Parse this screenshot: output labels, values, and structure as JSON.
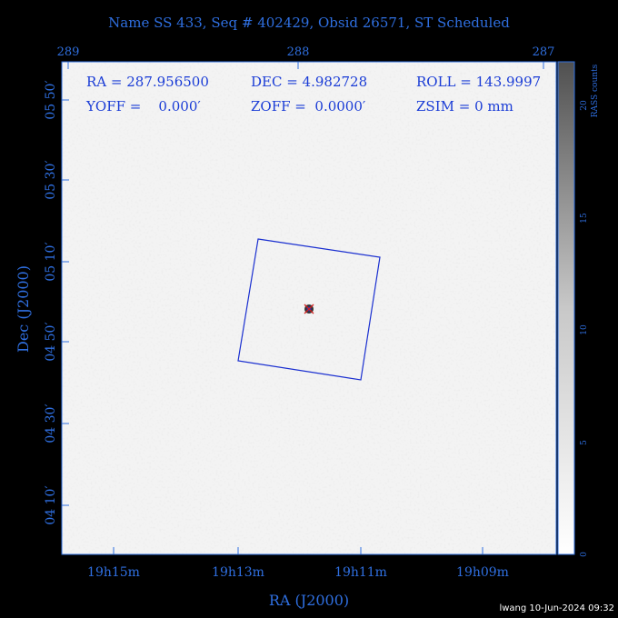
{
  "header": {
    "title": "Name SS 433, Seq # 402429, Obsid 26571, ST Scheduled"
  },
  "top_axis": {
    "labels": [
      "289",
      "288",
      "287"
    ]
  },
  "left_axis": {
    "title": "Dec (J2000)",
    "labels": [
      "05 50′",
      "05 30′",
      "05 10′",
      "04 50′",
      "04 30′",
      "04 10′"
    ]
  },
  "bottom_axis": {
    "title": "RA (J2000)",
    "labels": [
      "19h15m",
      "19h13m",
      "19h11m",
      "19h09m"
    ]
  },
  "info": {
    "ra": "RA = 287.956500",
    "dec": "DEC = 4.982728",
    "roll": "ROLL = 143.9997",
    "yoff": "YOFF =    0.000′",
    "zoff": "ZOFF =  0.0000′",
    "zsim": "ZSIM = 0 mm"
  },
  "colorbar": {
    "title": "RASS counts",
    "ticks": [
      "0",
      "5",
      "10",
      "15",
      "20"
    ]
  },
  "footer": "lwang 10-Jun-2024 09:32"
}
